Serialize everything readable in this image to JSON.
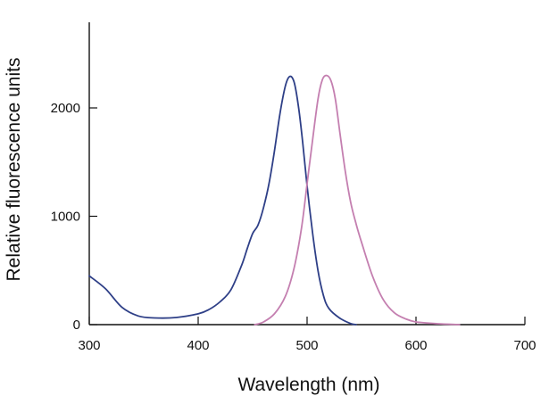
{
  "chart_data": {
    "type": "line",
    "title": "",
    "xlabel": "Wavelength (nm)",
    "ylabel": "Relative fluorescence units",
    "xlim": [
      300,
      700
    ],
    "ylim": [
      0,
      2800
    ],
    "x_ticks": [
      300,
      400,
      500,
      600,
      700
    ],
    "y_ticks": [
      0,
      1000,
      2000
    ],
    "x_tick_labels": [
      "300",
      "400",
      "500",
      "600",
      "700"
    ],
    "y_tick_labels": [
      "0",
      "1000",
      "2000"
    ],
    "grid": false,
    "legend": "none",
    "series": [
      {
        "color": "#2e3f87",
        "points": [
          [
            300,
            450
          ],
          [
            315,
            330
          ],
          [
            330,
            160
          ],
          [
            345,
            80
          ],
          [
            360,
            62
          ],
          [
            380,
            66
          ],
          [
            400,
            100
          ],
          [
            410,
            140
          ],
          [
            420,
            210
          ],
          [
            430,
            320
          ],
          [
            440,
            550
          ],
          [
            445,
            700
          ],
          [
            450,
            840
          ],
          [
            455,
            920
          ],
          [
            460,
            1080
          ],
          [
            465,
            1300
          ],
          [
            470,
            1600
          ],
          [
            475,
            1940
          ],
          [
            480,
            2200
          ],
          [
            484,
            2290
          ],
          [
            488,
            2240
          ],
          [
            492,
            2020
          ],
          [
            496,
            1680
          ],
          [
            500,
            1280
          ],
          [
            505,
            850
          ],
          [
            510,
            500
          ],
          [
            515,
            270
          ],
          [
            520,
            150
          ],
          [
            530,
            60
          ],
          [
            540,
            10
          ],
          [
            545,
            0
          ]
        ]
      },
      {
        "color": "#c47fb0",
        "points": [
          [
            452,
            0
          ],
          [
            460,
            25
          ],
          [
            470,
            100
          ],
          [
            480,
            260
          ],
          [
            488,
            520
          ],
          [
            495,
            900
          ],
          [
            500,
            1300
          ],
          [
            505,
            1700
          ],
          [
            510,
            2080
          ],
          [
            514,
            2260
          ],
          [
            518,
            2300
          ],
          [
            522,
            2250
          ],
          [
            526,
            2080
          ],
          [
            530,
            1780
          ],
          [
            535,
            1420
          ],
          [
            540,
            1130
          ],
          [
            545,
            930
          ],
          [
            550,
            760
          ],
          [
            560,
            450
          ],
          [
            570,
            230
          ],
          [
            580,
            110
          ],
          [
            590,
            55
          ],
          [
            600,
            25
          ],
          [
            620,
            8
          ],
          [
            640,
            0
          ]
        ]
      }
    ]
  }
}
